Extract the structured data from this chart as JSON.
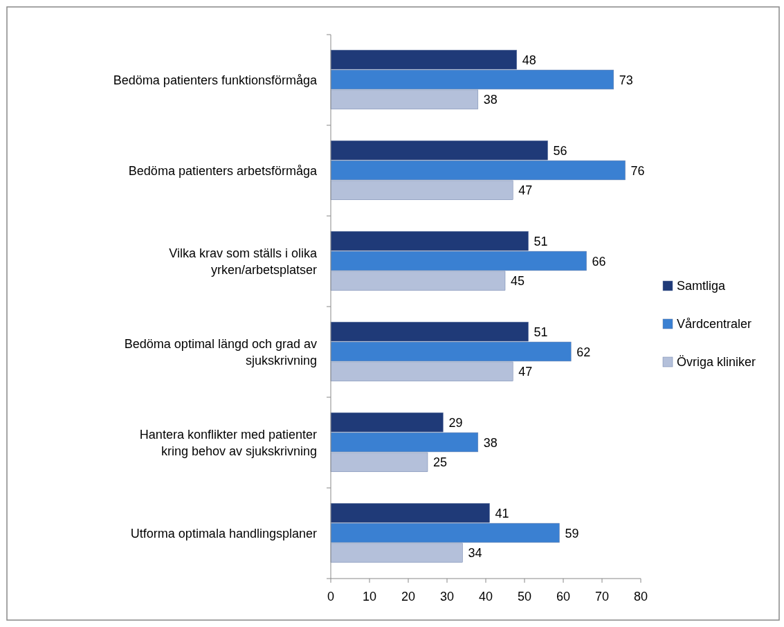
{
  "chart_data": {
    "type": "bar",
    "orientation": "horizontal",
    "categories": [
      "Bedöma patienters funktionsförmåga",
      "Bedöma patienters arbetsförmåga",
      "Vilka krav som ställs i olika yrken/arbetsplatser",
      "Bedöma optimal längd och grad av sjukskrivning",
      "Hantera konflikter med patienter kring behov av sjukskrivning",
      "Utforma optimala handlingsplaner"
    ],
    "series": [
      {
        "name": "Samtliga",
        "color": "#1f3a78",
        "values": [
          48,
          56,
          51,
          51,
          29,
          41
        ]
      },
      {
        "name": "Vårdcentraler",
        "color": "#3a80d2",
        "values": [
          73,
          76,
          66,
          62,
          38,
          59
        ]
      },
      {
        "name": "Övriga kliniker",
        "color": "#b4c0da",
        "values": [
          38,
          47,
          45,
          47,
          25,
          34
        ]
      }
    ],
    "xlim": [
      0,
      80
    ],
    "xticks": [
      0,
      10,
      20,
      30,
      40,
      50,
      60,
      70,
      80
    ],
    "data_labels": true,
    "legend": "right",
    "grid": false
  }
}
